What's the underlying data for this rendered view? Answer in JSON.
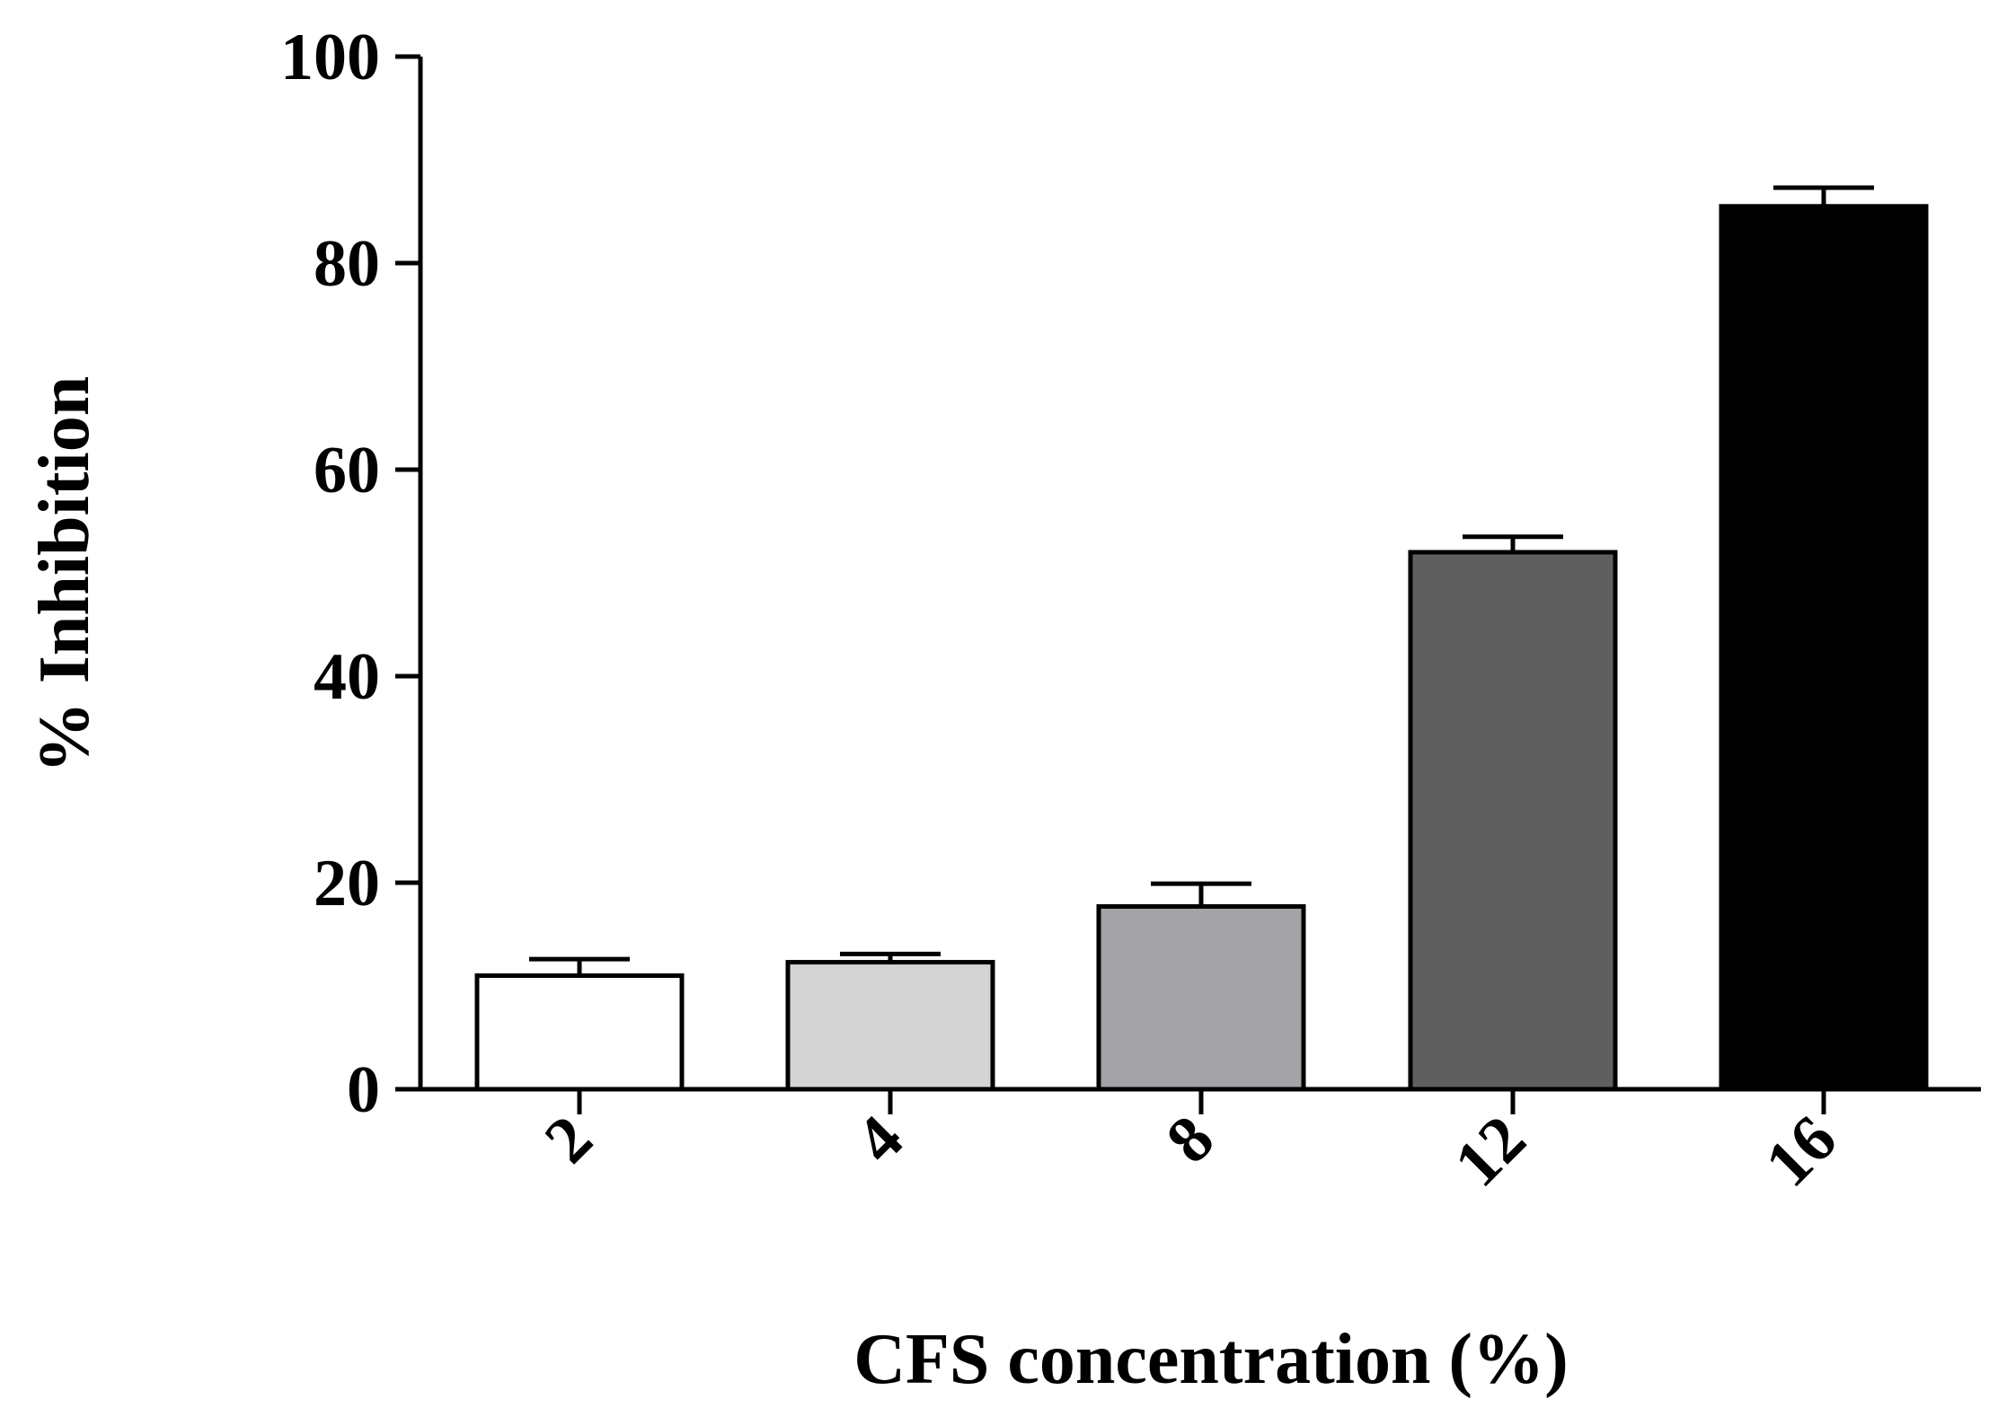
{
  "chart_data": {
    "type": "bar",
    "title": "",
    "xlabel": "CFS concentration (%)",
    "ylabel": "% Inhibition",
    "categories": [
      "2",
      "4",
      "8",
      "12",
      "16"
    ],
    "series": [
      {
        "values": [
          11,
          12.3,
          17.7,
          52,
          85.5
        ],
        "error": [
          1.6,
          0.8,
          2.2,
          1.5,
          1.8
        ],
        "colors": [
          "#ffffff",
          "#d4d4d4",
          "#a3a3a7",
          "#5f5f5f",
          "#000000"
        ]
      }
    ],
    "ylim": [
      0,
      100
    ],
    "yticks": [
      "0",
      "20",
      "40",
      "60",
      "80",
      "100"
    ],
    "grid": false,
    "legend": "none",
    "edge_color": "#000000"
  }
}
